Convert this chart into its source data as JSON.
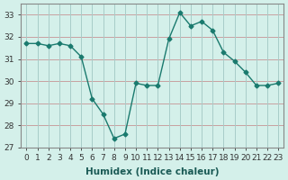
{
  "x": [
    0,
    1,
    2,
    3,
    4,
    5,
    6,
    7,
    8,
    9,
    10,
    11,
    12,
    13,
    14,
    15,
    16,
    17,
    18,
    19,
    20,
    21,
    22,
    23
  ],
  "y": [
    31.7,
    31.7,
    31.6,
    31.7,
    31.6,
    31.1,
    29.2,
    28.5,
    27.4,
    27.6,
    29.9,
    29.8,
    29.8,
    31.9,
    33.1,
    32.5,
    32.7,
    32.3,
    31.3,
    30.9,
    30.4,
    29.8,
    29.8,
    29.9
  ],
  "line_color": "#1a7a6e",
  "marker": "D",
  "marker_size": 2.5,
  "bg_color": "#d4f0ea",
  "grid_major_color": "#c8b8b8",
  "grid_minor_color": "#c8e8e2",
  "xlabel": "Humidex (Indice chaleur)",
  "ylim": [
    27,
    33.5
  ],
  "xlim": [
    -0.5,
    23.5
  ],
  "yticks": [
    27,
    28,
    29,
    30,
    31,
    32,
    33
  ],
  "xticks": [
    0,
    1,
    2,
    3,
    4,
    5,
    6,
    7,
    8,
    9,
    10,
    11,
    12,
    13,
    14,
    15,
    16,
    17,
    18,
    19,
    20,
    21,
    22,
    23
  ],
  "tick_label_size": 6.5,
  "xlabel_size": 7.5,
  "xlabel_weight": "bold",
  "spine_color": "#888888"
}
